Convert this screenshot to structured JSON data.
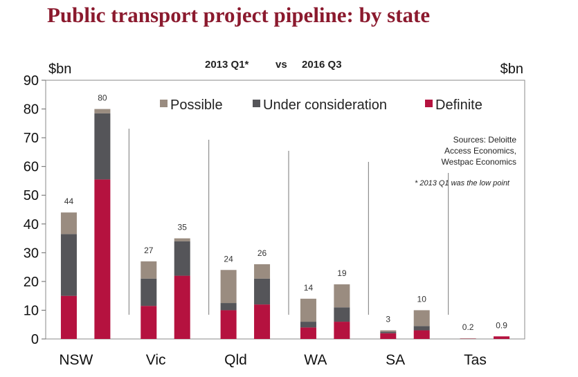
{
  "title": "Public transport project pipeline: by state",
  "chart_data": {
    "type": "bar",
    "stacked": true,
    "subtitle_left": "2013 Q1*",
    "subtitle_mid": "vs",
    "subtitle_right": "2016 Q3",
    "ylabel_left": "$bn",
    "ylabel_right": "$bn",
    "ylim": [
      0,
      90
    ],
    "yticks": [
      0,
      10,
      20,
      30,
      40,
      50,
      60,
      70,
      80,
      90
    ],
    "categories": [
      "NSW",
      "Vic",
      "Qld",
      "WA",
      "SA",
      "Tas"
    ],
    "periods": [
      "2013 Q1",
      "2016 Q3"
    ],
    "legend_position": "top",
    "series": [
      {
        "name": "Definite",
        "color": "#b5123f",
        "values": [
          [
            15,
            55.5
          ],
          [
            11.5,
            22
          ],
          [
            10,
            12
          ],
          [
            4,
            6
          ],
          [
            2,
            3
          ],
          [
            0.1,
            0.9
          ]
        ]
      },
      {
        "name": "Under consideration",
        "color": "#555559",
        "values": [
          [
            21.5,
            23
          ],
          [
            9.5,
            12
          ],
          [
            2.5,
            9
          ],
          [
            2,
            5
          ],
          [
            0.5,
            1.5
          ],
          [
            0,
            0
          ]
        ]
      },
      {
        "name": "Possible",
        "color": "#9a8c80",
        "values": [
          [
            7.5,
            1.5
          ],
          [
            6,
            1
          ],
          [
            11.5,
            5
          ],
          [
            8,
            8
          ],
          [
            0.5,
            5.5
          ],
          [
            0.1,
            0
          ]
        ]
      }
    ],
    "totals": [
      [
        "44",
        "80"
      ],
      [
        "27",
        "35"
      ],
      [
        "24",
        "26"
      ],
      [
        "14",
        "19"
      ],
      [
        "3",
        "10"
      ],
      [
        "0.2",
        "0.9"
      ]
    ],
    "sources": [
      "Sources: Deloitte",
      "Access Economics,",
      "Westpac Economics"
    ],
    "note": "* 2013 Q1 was the low point"
  }
}
